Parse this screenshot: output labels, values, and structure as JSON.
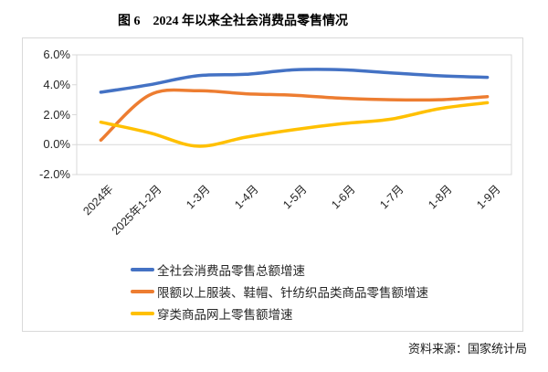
{
  "title": "图 6　2024 年以来全社会消费品零售情况",
  "source": "资料来源：国家统计局",
  "colors": {
    "series_blue": "#4472C4",
    "series_orange": "#ED7D31",
    "series_yellow": "#FFC000",
    "grid": "#D9D9D9",
    "text": "#262626"
  },
  "chart_data": {
    "type": "line",
    "title": "图 6　2024 年以来全社会消费品零售情况",
    "categories": [
      "2024年",
      "2025年1-2月",
      "1-3月",
      "1-4月",
      "1-5月",
      "1-6月",
      "1-7月",
      "1-8月",
      "1-9月"
    ],
    "series": [
      {
        "name": "全社会消费品零售总额增速",
        "color": "#4472C4",
        "values": [
          3.5,
          4.0,
          4.6,
          4.7,
          5.0,
          5.0,
          4.8,
          4.6,
          4.5
        ]
      },
      {
        "name": "限额以上服装、鞋帽、针纺织品类商品零售额增速",
        "color": "#ED7D31",
        "values": [
          0.3,
          3.3,
          3.6,
          3.4,
          3.3,
          3.1,
          3.0,
          3.0,
          3.2
        ]
      },
      {
        "name": "穿类商品网上零售额增速",
        "color": "#FFC000",
        "values": [
          1.5,
          0.8,
          -0.1,
          0.5,
          1.0,
          1.4,
          1.7,
          2.4,
          2.8
        ]
      }
    ],
    "xlabel": "",
    "ylabel": "",
    "ylim": [
      -2,
      6
    ],
    "yticks": [
      "6.0%",
      "4.0%",
      "2.0%",
      "0.0%",
      "-2.0%"
    ],
    "ytick_values": [
      6,
      4,
      2,
      0,
      -2
    ],
    "grid": "zero-line-only",
    "line_style": "smooth",
    "legend_position": "bottom-left"
  }
}
